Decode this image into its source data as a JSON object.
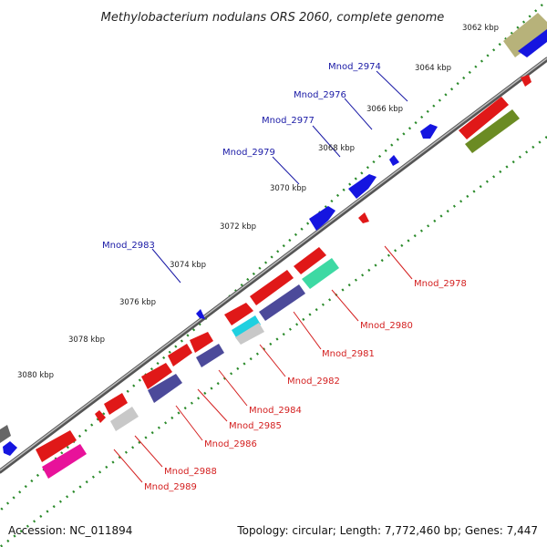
{
  "title": "Methylobacterium nodulans ORS 2060, complete genome",
  "accession": "Accession: NC_011894",
  "summary": "Topology: circular; Length: 7,772,460 bp; Genes: 7,447",
  "ticks": [
    "3062 kbp",
    "3064 kbp",
    "3066 kbp",
    "3068 kbp",
    "3070 kbp",
    "3072 kbp",
    "3074 kbp",
    "3076 kbp",
    "3078 kbp",
    "3080 kbp"
  ],
  "forward_labels": [
    "Mnod_2974",
    "Mnod_2976",
    "Mnod_2977",
    "Mnod_2979",
    "Mnod_2983"
  ],
  "reverse_labels": [
    "Mnod_2978",
    "Mnod_2980",
    "Mnod_2981",
    "Mnod_2982",
    "Mnod_2984",
    "Mnod_2985",
    "Mnod_2986",
    "Mnod_2988",
    "Mnod_2989"
  ],
  "colors": {
    "forward_label": "#1a1aa6",
    "reverse_label": "#d42020",
    "backbone": "#777777",
    "dots": "#2a8a2a",
    "cds_red": "#e01818",
    "cds_blue": "#1515e0"
  }
}
